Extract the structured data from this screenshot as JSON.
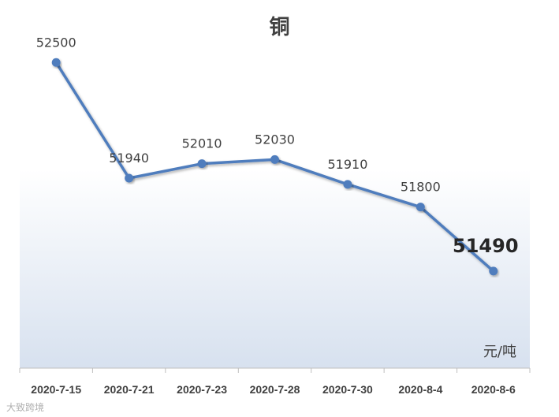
{
  "chart_data": {
    "type": "line",
    "title": "铜",
    "unit": "元/吨",
    "categories": [
      "2020-7-15",
      "2020-7-21",
      "2020-7-23",
      "2020-7-28",
      "2020-7-30",
      "2020-8-4",
      "2020-8-6"
    ],
    "series": [
      {
        "values": [
          52500,
          51940,
          52010,
          52030,
          51910,
          51800,
          51490
        ]
      }
    ],
    "data_labels": [
      "52500",
      "51940",
      "52010",
      "52030",
      "51910",
      "51800",
      "51490"
    ],
    "highlight_last_label": true,
    "line_color": "#4f7dbd",
    "ylim": [
      51020,
      52650
    ],
    "grid": false
  },
  "watermark": "大致跨境"
}
